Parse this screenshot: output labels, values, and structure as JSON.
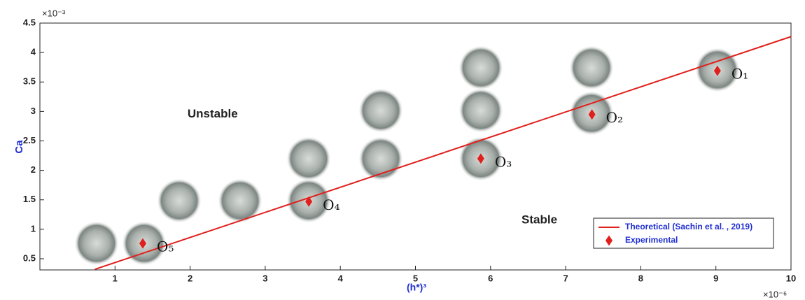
{
  "chart_data": {
    "type": "scatter",
    "xlabel": "(h*)³",
    "ylabel": "Ca",
    "x_multiplier": "×10⁻⁶",
    "y_multiplier": "×10⁻³",
    "xlim": [
      0,
      10
    ],
    "ylim": [
      0.31,
      4.5
    ],
    "xticks": [
      1,
      2,
      3,
      4,
      5,
      6,
      7,
      8,
      9,
      10
    ],
    "yticks": [
      0.5,
      1,
      1.5,
      2,
      2.5,
      3,
      3.5,
      4,
      4.5
    ],
    "legend": "lower right",
    "series": [
      {
        "name": "Theoretical (Sachin et al. , 2019)",
        "color": "#e0201c",
        "mode": "line",
        "x": [
          0.73,
          10
        ],
        "values": [
          0.32,
          4.27
        ]
      },
      {
        "name": "Experimental",
        "color": "#e0201c",
        "mode": "markers",
        "x": [
          9.02,
          7.35,
          5.87,
          3.58,
          1.37
        ],
        "values": [
          3.69,
          2.95,
          2.2,
          1.47,
          0.76
        ]
      }
    ],
    "point_labels": [
      "O₁",
      "O₂",
      "O₃",
      "O₄",
      "O₅"
    ],
    "regions": [
      {
        "text": "Unstable",
        "x": 2.3,
        "y": 2.95
      },
      {
        "text": "Stable",
        "x": 6.65,
        "y": 1.15
      }
    ]
  }
}
